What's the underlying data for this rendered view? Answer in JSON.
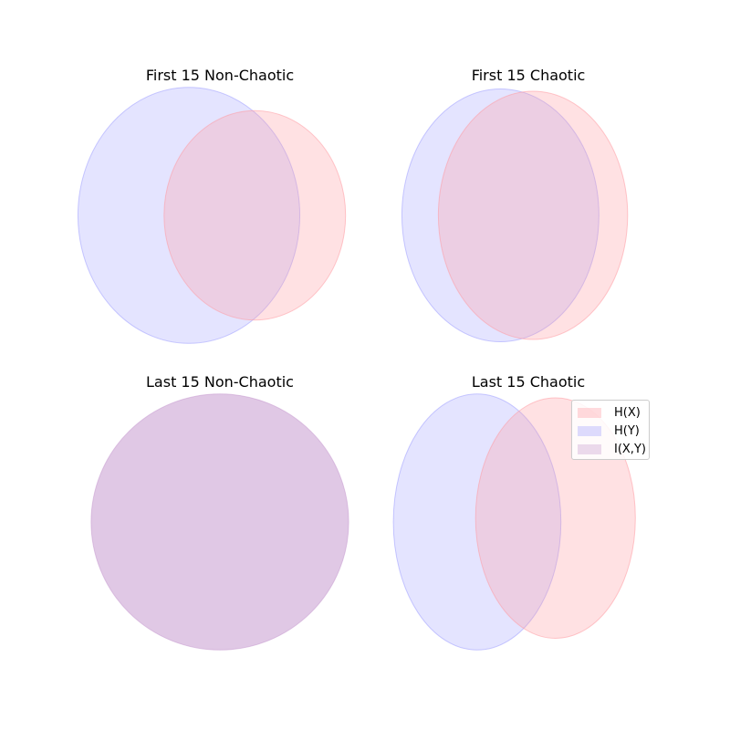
{
  "chart_data": [
    {
      "type": "venn",
      "title": "First 15 Non-Chaotic",
      "sets": [
        {
          "name": "H(X)",
          "color": "#ff9aa2"
        },
        {
          "name": "H(Y)",
          "color": "#9f9fff"
        }
      ],
      "circles": [
        {
          "set": "H(Y)",
          "cx": -0.4,
          "cy": 0,
          "rx": 1.43,
          "ry": 1.65
        },
        {
          "set": "H(X)",
          "cx": 0.45,
          "cy": 0,
          "rx": 1.17,
          "ry": 1.35
        }
      ],
      "intersection": "I(X,Y)"
    },
    {
      "type": "venn",
      "title": "First 15 Chaotic",
      "sets": [
        {
          "name": "H(X)",
          "color": "#ff9aa2"
        },
        {
          "name": "H(Y)",
          "color": "#9f9fff"
        }
      ],
      "circles": [
        {
          "set": "H(Y)",
          "cx": -0.36,
          "cy": 0,
          "rx": 1.27,
          "ry": 1.63
        },
        {
          "set": "H(X)",
          "cx": 0.06,
          "cy": 0,
          "rx": 1.22,
          "ry": 1.6
        }
      ],
      "intersection": "I(X,Y)"
    },
    {
      "type": "venn",
      "title": "Last 15 Non-Chaotic",
      "sets": [
        {
          "name": "H(X)",
          "color": "#ff9aa2"
        },
        {
          "name": "H(Y)",
          "color": "#9f9fff"
        }
      ],
      "circles": [
        {
          "set": "I(X,Y)",
          "cx": 0,
          "cy": 0,
          "rx": 1.66,
          "ry": 1.65
        }
      ],
      "intersection": "I(X,Y)"
    },
    {
      "type": "venn",
      "title": "Last 15 Chaotic",
      "sets": [
        {
          "name": "H(X)",
          "color": "#ff9aa2"
        },
        {
          "name": "H(Y)",
          "color": "#9f9fff"
        }
      ],
      "circles": [
        {
          "set": "H(Y)",
          "cx": -0.66,
          "cy": 0,
          "rx": 1.08,
          "ry": 1.65
        },
        {
          "set": "H(X)",
          "cx": 0.35,
          "cy": 0.05,
          "rx": 1.03,
          "ry": 1.55
        }
      ],
      "intersection": "I(X,Y)",
      "legend": {
        "placement": "upper-right",
        "entries": [
          {
            "label": "H(X)",
            "color": "#ff9aa2"
          },
          {
            "label": "H(Y)",
            "color": "#9f9fff"
          },
          {
            "label": "I(X,Y)",
            "color": "#c79bd0"
          }
        ]
      }
    }
  ]
}
